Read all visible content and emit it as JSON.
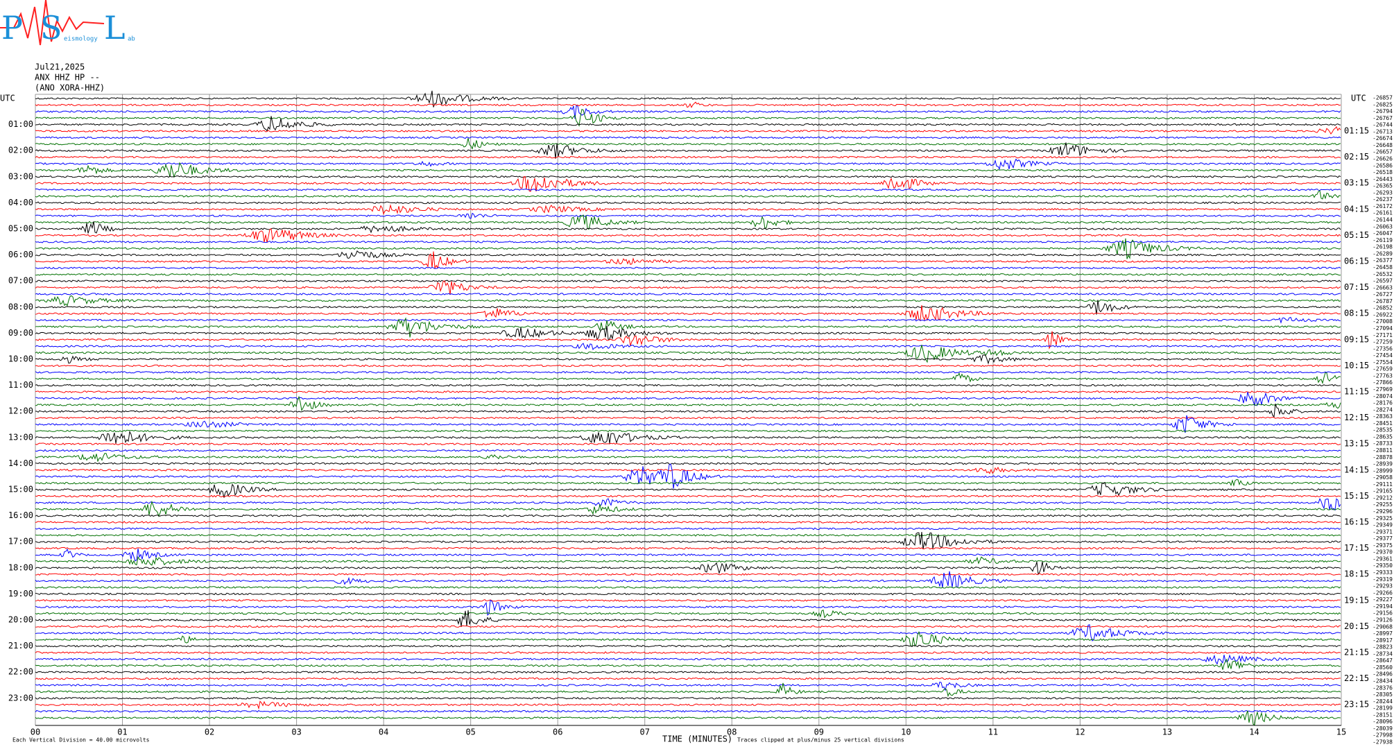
{
  "chart_data": {
    "type": "helicorder",
    "logo": {
      "letters": [
        "P",
        "S",
        "L"
      ],
      "words": [
        "eismology",
        "ab"
      ]
    },
    "header": [
      "Jul21,2025",
      "ANX HHZ HP --",
      "(ANO XORA-HHZ)"
    ],
    "left_axis_title": "UTC",
    "right_axis_title": "UTC",
    "left_labels": [
      "01:00",
      "02:00",
      "03:00",
      "04:00",
      "05:00",
      "06:00",
      "07:00",
      "08:00",
      "09:00",
      "10:00",
      "11:00",
      "12:00",
      "13:00",
      "14:00",
      "15:00",
      "16:00",
      "17:00",
      "18:00",
      "19:00",
      "20:00",
      "21:00",
      "22:00",
      "23:00"
    ],
    "right_labels": [
      "01:15",
      "02:15",
      "03:15",
      "04:15",
      "05:15",
      "06:15",
      "07:15",
      "08:15",
      "09:15",
      "10:15",
      "11:15",
      "12:15",
      "13:15",
      "14:15",
      "15:15",
      "16:15",
      "17:15",
      "18:15",
      "19:15",
      "20:15",
      "21:15",
      "22:15",
      "23:15"
    ],
    "trace_offsets": [
      -26857,
      -26825,
      -26794,
      -26767,
      -26744,
      -26713,
      -26674,
      -26648,
      -26657,
      -26626,
      -26586,
      -26518,
      -26443,
      -26365,
      -26293,
      -26237,
      -26172,
      -26161,
      -26144,
      -26063,
      -26047,
      -26119,
      -26198,
      -26289,
      -26377,
      -26458,
      -26532,
      -26597,
      -26663,
      -26727,
      -26787,
      -26852,
      -26922,
      -27008,
      -27094,
      -27171,
      -27259,
      -27356,
      -27454,
      -27554,
      -27659,
      -27763,
      -27866,
      -27969,
      -28074,
      -28176,
      -28274,
      -28363,
      -28451,
      -28535,
      -28635,
      -28733,
      -28811,
      -28878,
      -28939,
      -28999,
      -29058,
      -29111,
      -29165,
      -29212,
      -29255,
      -29296,
      -29325,
      -29349,
      -29371,
      -29377,
      -29375,
      -29370,
      -29361,
      -29350,
      -29333,
      -29319,
      -29293,
      -29266,
      -29227,
      -29194,
      -29156,
      -29126,
      -29068,
      -28997,
      -28917,
      -28823,
      -28734,
      -28647,
      -28560,
      -28496,
      -28434,
      -28376,
      -28305,
      -28244,
      -28199,
      -28151,
      -28096,
      -28039,
      -27998,
      -27938
    ],
    "trace_colors": [
      "#000000",
      "#ff0000",
      "#0000ff",
      "#007000"
    ],
    "xlim": [
      0,
      15
    ],
    "xticks": [
      {
        "value": 0,
        "label": "00"
      },
      {
        "value": 1,
        "label": "01"
      },
      {
        "value": 2,
        "label": "02"
      },
      {
        "value": 3,
        "label": "03"
      },
      {
        "value": 4,
        "label": "04"
      },
      {
        "value": 5,
        "label": "05"
      },
      {
        "value": 6,
        "label": "06"
      },
      {
        "value": 7,
        "label": "07"
      },
      {
        "value": 8,
        "label": "08"
      },
      {
        "value": 9,
        "label": "09"
      },
      {
        "value": 10,
        "label": "10"
      },
      {
        "value": 11,
        "label": "11"
      },
      {
        "value": 12,
        "label": "12"
      },
      {
        "value": 13,
        "label": "13"
      },
      {
        "value": 14,
        "label": "14"
      },
      {
        "value": 15,
        "label": "15"
      }
    ],
    "x_label": "TIME (MINUTES)",
    "footer_left": "Each Vertical Division =   40.00 microvolts",
    "footer_right": "Traces clipped at plus/minus 25 vertical divisions"
  }
}
